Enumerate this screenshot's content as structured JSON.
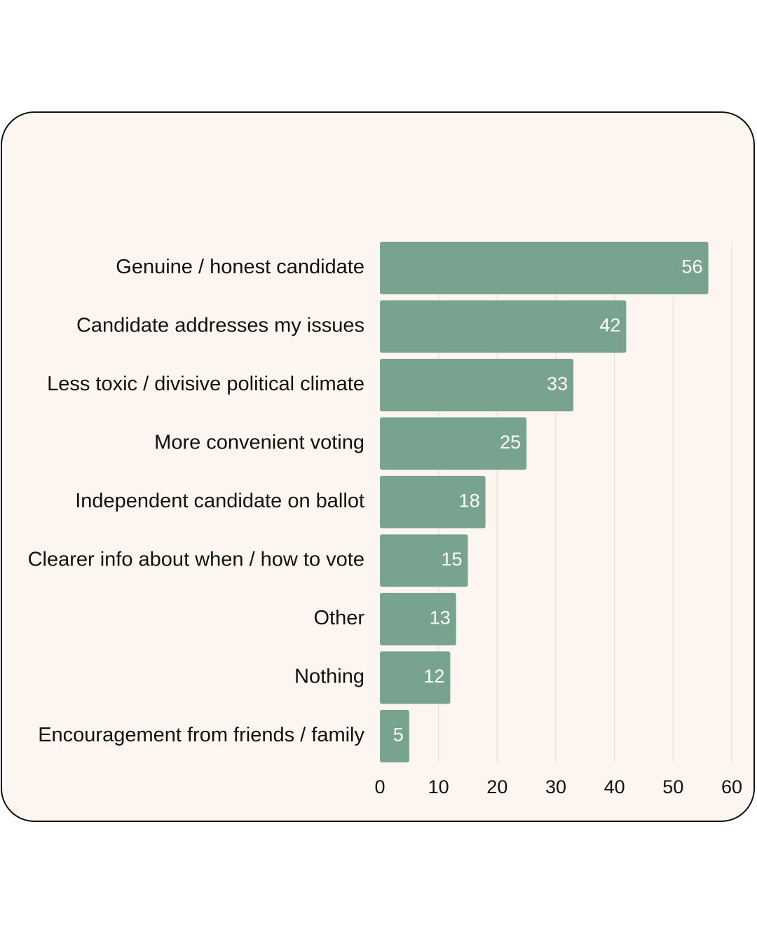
{
  "chart_data": {
    "type": "bar",
    "orientation": "horizontal",
    "categories": [
      "Genuine / honest candidate",
      "Candidate addresses my issues",
      "Less toxic / divisive political climate",
      "More convenient voting",
      "Independent candidate on ballot",
      "Clearer info about when / how to vote",
      "Other",
      "Nothing",
      "Encouragement from friends / family"
    ],
    "values": [
      56,
      42,
      33,
      25,
      18,
      15,
      13,
      12,
      5
    ],
    "value_labels": [
      "56",
      "42",
      "33",
      "25",
      "18",
      "15",
      "13",
      "12",
      "5"
    ],
    "xlim": [
      0,
      60
    ],
    "xticks": [
      0,
      10,
      20,
      30,
      40,
      50,
      60
    ],
    "xtick_labels": [
      "0",
      "10",
      "20",
      "30",
      "40",
      "50",
      "60"
    ],
    "title": "",
    "xlabel": "",
    "ylabel": "",
    "grid": "vertical",
    "legend": "none",
    "colors": {
      "bar": "#78a38f",
      "bar_label": "#ffffff",
      "grid": "#e6ddd8",
      "card_background": "#fdf6f0",
      "card_border": "#111111",
      "text": "#111111"
    }
  }
}
